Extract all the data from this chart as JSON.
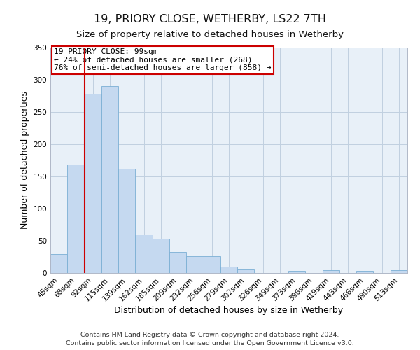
{
  "title": "19, PRIORY CLOSE, WETHERBY, LS22 7TH",
  "subtitle": "Size of property relative to detached houses in Wetherby",
  "xlabel": "Distribution of detached houses by size in Wetherby",
  "ylabel": "Number of detached properties",
  "categories": [
    "45sqm",
    "68sqm",
    "92sqm",
    "115sqm",
    "139sqm",
    "162sqm",
    "185sqm",
    "209sqm",
    "232sqm",
    "256sqm",
    "279sqm",
    "302sqm",
    "326sqm",
    "349sqm",
    "373sqm",
    "396sqm",
    "419sqm",
    "443sqm",
    "466sqm",
    "490sqm",
    "513sqm"
  ],
  "values": [
    29,
    168,
    278,
    290,
    162,
    60,
    53,
    33,
    26,
    26,
    10,
    5,
    0,
    0,
    3,
    0,
    4,
    0,
    3,
    0,
    4
  ],
  "bar_color": "#c5d9f0",
  "bar_edge_color": "#7bafd4",
  "vline_x_index": 2,
  "vline_color": "#cc0000",
  "ylim": [
    0,
    350
  ],
  "yticks": [
    0,
    50,
    100,
    150,
    200,
    250,
    300,
    350
  ],
  "annotation_title": "19 PRIORY CLOSE: 99sqm",
  "annotation_line1": "← 24% of detached houses are smaller (268)",
  "annotation_line2": "76% of semi-detached houses are larger (858) →",
  "annotation_box_color": "#ffffff",
  "annotation_box_edge": "#cc0000",
  "footer1": "Contains HM Land Registry data © Crown copyright and database right 2024.",
  "footer2": "Contains public sector information licensed under the Open Government Licence v3.0.",
  "bg_color": "#ffffff",
  "plot_bg_color": "#e8f0f8",
  "grid_color": "#c0d0e0",
  "title_fontsize": 11.5,
  "subtitle_fontsize": 9.5,
  "axis_label_fontsize": 9,
  "tick_fontsize": 7.5,
  "annotation_fontsize": 8,
  "footer_fontsize": 6.8
}
